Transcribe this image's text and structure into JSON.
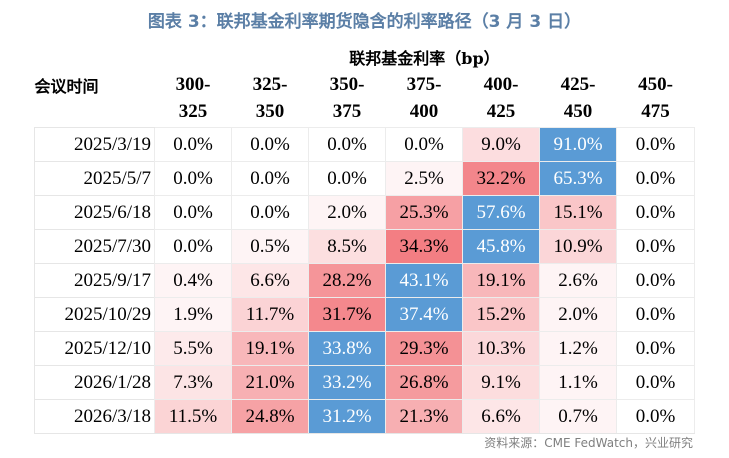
{
  "title": "图表 3：联邦基金利率期货隐含的利率路径（3 月 3 日）",
  "table": {
    "group_header": "联邦基金利率（bp）",
    "row_header": "会议时间",
    "ranges": [
      {
        "top": "300-",
        "bottom": "325"
      },
      {
        "top": "325-",
        "bottom": "350"
      },
      {
        "top": "350-",
        "bottom": "375"
      },
      {
        "top": "375-",
        "bottom": "400"
      },
      {
        "top": "400-",
        "bottom": "425"
      },
      {
        "top": "425-",
        "bottom": "450"
      },
      {
        "top": "450-",
        "bottom": "475"
      }
    ],
    "rows": [
      {
        "date": "2025/3/19",
        "values": [
          0.0,
          0.0,
          0.0,
          0.0,
          9.0,
          91.0,
          0.0
        ]
      },
      {
        "date": "2025/5/7",
        "values": [
          0.0,
          0.0,
          0.0,
          2.5,
          32.2,
          65.3,
          0.0
        ]
      },
      {
        "date": "2025/6/18",
        "values": [
          0.0,
          0.0,
          2.0,
          25.3,
          57.6,
          15.1,
          0.0
        ]
      },
      {
        "date": "2025/7/30",
        "values": [
          0.0,
          0.5,
          8.5,
          34.3,
          45.8,
          10.9,
          0.0
        ]
      },
      {
        "date": "2025/9/17",
        "values": [
          0.4,
          6.6,
          28.2,
          43.1,
          19.1,
          2.6,
          0.0
        ]
      },
      {
        "date": "2025/10/29",
        "values": [
          1.9,
          11.7,
          31.7,
          37.4,
          15.2,
          2.0,
          0.0
        ]
      },
      {
        "date": "2025/12/10",
        "values": [
          5.5,
          19.1,
          33.8,
          29.3,
          10.3,
          1.2,
          0.0
        ]
      },
      {
        "date": "2026/1/28",
        "values": [
          7.3,
          21.0,
          33.2,
          26.8,
          9.1,
          1.1,
          0.0
        ]
      },
      {
        "date": "2026/3/18",
        "values": [
          11.5,
          24.8,
          31.2,
          21.3,
          6.6,
          0.7,
          0.0
        ]
      }
    ]
  },
  "colors": {
    "title": "#5b7fa6",
    "max_cell": "#5a9bd5",
    "heat_high": "#f2787d",
    "heat_low": "#ffffff",
    "source_text": "#7f7f7f"
  },
  "source": "资料来源：CME FedWatch，兴业研究"
}
